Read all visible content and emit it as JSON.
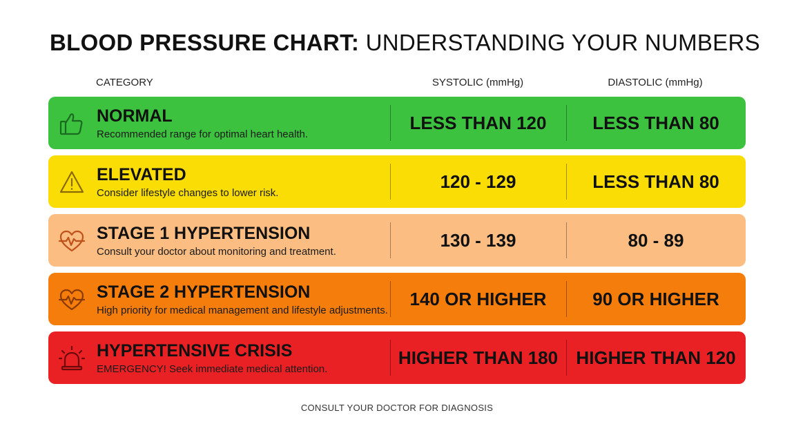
{
  "title": {
    "bold": "BLOOD PRESSURE CHART:",
    "light": "UNDERSTANDING YOUR NUMBERS"
  },
  "headers": {
    "category": "CATEGORY",
    "systolic": "SYSTOLIC (mmHg)",
    "diastolic": "DIASTOLIC (mmHg)"
  },
  "rows": [
    {
      "name": "NORMAL",
      "description": "Recommended range for optimal heart health.",
      "systolic": "LESS THAN 120",
      "diastolic": "LESS THAN 80",
      "color": "#3cc23e",
      "icon": "thumbs-up-icon"
    },
    {
      "name": "ELEVATED",
      "description": "Consider lifestyle changes to lower risk.",
      "systolic": "120 - 129",
      "diastolic": "LESS THAN 80",
      "color": "#fbdd06",
      "icon": "warning-icon"
    },
    {
      "name": "STAGE 1 HYPERTENSION",
      "description": "Consult your doctor about monitoring and treatment.",
      "systolic": "130 - 139",
      "diastolic": "80 - 89",
      "color": "#fbbd82",
      "icon": "heartbeat-icon"
    },
    {
      "name": "STAGE 2 HYPERTENSION",
      "description": "High priority for medical management and lifestyle adjustments.",
      "systolic": "140 OR HIGHER",
      "diastolic": "90 OR HIGHER",
      "color": "#f57d0c",
      "icon": "heartbeat-icon"
    },
    {
      "name": "HYPERTENSIVE CRISIS",
      "description": "EMERGENCY! Seek immediate medical attention.",
      "systolic": "HIGHER THAN 180",
      "diastolic": "HIGHER THAN 120",
      "color": "#ea2124",
      "icon": "alarm-siren-icon"
    }
  ],
  "footer": "CONSULT YOUR DOCTOR FOR DIAGNOSIS"
}
